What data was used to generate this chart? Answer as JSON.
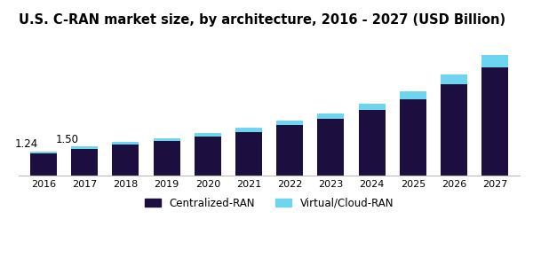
{
  "title": "U.S. C-RAN market size, by architecture, 2016 - 2027 (USD Billion)",
  "years": [
    2016,
    2017,
    2018,
    2019,
    2020,
    2021,
    2022,
    2023,
    2024,
    2025,
    2026,
    2027
  ],
  "centralized": [
    1.15,
    1.38,
    1.6,
    1.8,
    2.02,
    2.25,
    2.6,
    2.95,
    3.4,
    3.95,
    4.75,
    5.6
  ],
  "virtual": [
    0.09,
    0.12,
    0.12,
    0.14,
    0.16,
    0.22,
    0.25,
    0.28,
    0.32,
    0.4,
    0.5,
    0.65
  ],
  "ann_2016": "1.24",
  "ann_2017": "1.50",
  "centralized_color": "#1c0f3f",
  "virtual_color": "#6dd5f0",
  "background_color": "#ffffff",
  "legend_labels": [
    "Centralized-RAN",
    "Virtual/Cloud-RAN"
  ],
  "title_fontsize": 10.5,
  "bar_width": 0.65,
  "ylim": [
    0,
    7.5
  ]
}
